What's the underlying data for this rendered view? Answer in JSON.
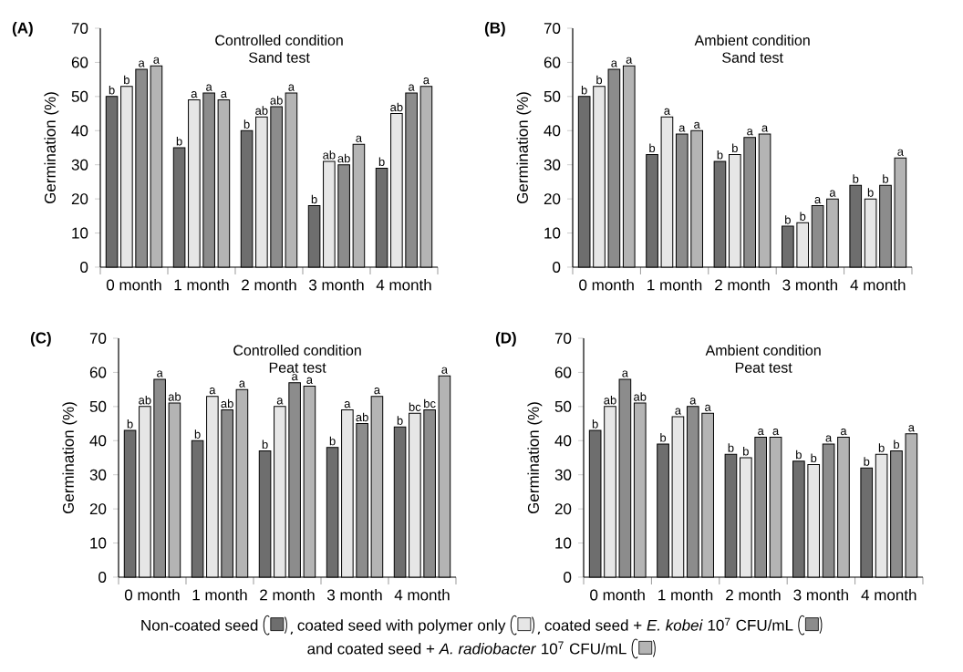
{
  "chart_data": [
    {
      "type": "bar",
      "title": "Controlled condition",
      "subtitle": "Sand test",
      "ylabel": "Germination (%)",
      "annotations": [
        "(A)"
      ],
      "legend": "bottom",
      "categories": [
        "0 month",
        "1 month",
        "2 month",
        "3 month",
        "4 month"
      ],
      "ylim": [
        0,
        70
      ],
      "yticks": [
        0,
        10,
        20,
        30,
        40,
        50,
        60,
        70
      ],
      "series": [
        {
          "name": "Non-coated seed",
          "color": "#6e6e6e",
          "values": [
            50,
            35,
            40,
            18,
            29
          ],
          "value_labels": [
            "b",
            "b",
            "b",
            "b",
            "b"
          ]
        },
        {
          "name": "coated seed with polymer only",
          "color": "#e6e6e6",
          "values": [
            53,
            49,
            44,
            31,
            45
          ],
          "value_labels": [
            "b",
            "a",
            "ab",
            "ab",
            "ab"
          ]
        },
        {
          "name": "coated seed + *E. kobei* 10$^{7}$ CFU/mL",
          "color": "#8c8c8c",
          "values": [
            58,
            51,
            47,
            30,
            51
          ],
          "value_labels": [
            "a",
            "a",
            "ab",
            "ab",
            "a"
          ]
        },
        {
          "name": "and coated seed + *A. radiobacter* 10$^{7}$ CFU/mL",
          "color": "#b4b4b4",
          "values": [
            59,
            49,
            51,
            36,
            53
          ],
          "value_labels": [
            "a",
            "a",
            "a",
            "a",
            "a"
          ]
        }
      ]
    },
    {
      "type": "bar",
      "title": "Ambient condition",
      "subtitle": "Sand test",
      "ylabel": "Germination (%)",
      "annotations": [
        "(B)"
      ],
      "categories": [
        "0 month",
        "1 month",
        "2 month",
        "3 month",
        "4 month"
      ],
      "ylim": [
        0,
        70
      ],
      "yticks": [
        0,
        10,
        20,
        30,
        40,
        50,
        60,
        70
      ],
      "series": [
        {
          "color": "#6e6e6e",
          "values": [
            50,
            33,
            31,
            12,
            24
          ],
          "value_labels": [
            "b",
            "b",
            "b",
            "b",
            "b"
          ]
        },
        {
          "color": "#e6e6e6",
          "values": [
            53,
            44,
            33,
            13,
            20
          ],
          "value_labels": [
            "b",
            "a",
            "b",
            "b",
            "b"
          ]
        },
        {
          "color": "#8c8c8c",
          "values": [
            58,
            39,
            38,
            18,
            24
          ],
          "value_labels": [
            "a",
            "a",
            "a",
            "a",
            "b"
          ]
        },
        {
          "color": "#b4b4b4",
          "values": [
            59,
            40,
            39,
            20,
            32
          ],
          "value_labels": [
            "a",
            "a",
            "a",
            "a",
            "a"
          ]
        }
      ]
    },
    {
      "type": "bar",
      "title": "Controlled condition",
      "subtitle": "Peat test",
      "ylabel": "Germination (%)",
      "annotations": [
        "(C)"
      ],
      "categories": [
        "0 month",
        "1 month",
        "2 month",
        "3 month",
        "4 month"
      ],
      "ylim": [
        0,
        70
      ],
      "yticks": [
        0,
        10,
        20,
        30,
        40,
        50,
        60,
        70
      ],
      "series": [
        {
          "color": "#6e6e6e",
          "values": [
            43,
            40,
            37,
            38,
            44
          ],
          "value_labels": [
            "b",
            "b",
            "b",
            "b",
            "b"
          ]
        },
        {
          "color": "#e6e6e6",
          "values": [
            50,
            53,
            50,
            49,
            48
          ],
          "value_labels": [
            "ab",
            "a",
            "a",
            "a",
            "bc"
          ]
        },
        {
          "color": "#8c8c8c",
          "values": [
            58,
            49,
            57,
            45,
            49
          ],
          "value_labels": [
            "a",
            "ab",
            "a",
            "ab",
            "bc"
          ]
        },
        {
          "color": "#b4b4b4",
          "values": [
            51,
            55,
            56,
            53,
            59
          ],
          "value_labels": [
            "ab",
            "a",
            "a",
            "a",
            "a"
          ]
        }
      ]
    },
    {
      "type": "bar",
      "title": "Ambient condition",
      "subtitle": "Peat test",
      "ylabel": "Germination (%)",
      "annotations": [
        "(D)"
      ],
      "categories": [
        "0 month",
        "1 month",
        "2 month",
        "3 month",
        "4 month"
      ],
      "ylim": [
        0,
        70
      ],
      "yticks": [
        0,
        10,
        20,
        30,
        40,
        50,
        60,
        70
      ],
      "series": [
        {
          "color": "#6e6e6e",
          "values": [
            43,
            39,
            36,
            34,
            32
          ],
          "value_labels": [
            "b",
            "b",
            "b",
            "b",
            "b"
          ]
        },
        {
          "color": "#e6e6e6",
          "values": [
            50,
            47,
            35,
            33,
            36
          ],
          "value_labels": [
            "ab",
            "a",
            "b",
            "b",
            "b"
          ]
        },
        {
          "color": "#8c8c8c",
          "values": [
            58,
            50,
            41,
            39,
            37
          ],
          "value_labels": [
            "a",
            "a",
            "a",
            "a",
            "b"
          ]
        },
        {
          "color": "#b4b4b4",
          "values": [
            51,
            48,
            41,
            41,
            42
          ],
          "value_labels": [
            "ab",
            "a",
            "a",
            "a",
            "a"
          ]
        }
      ]
    }
  ]
}
